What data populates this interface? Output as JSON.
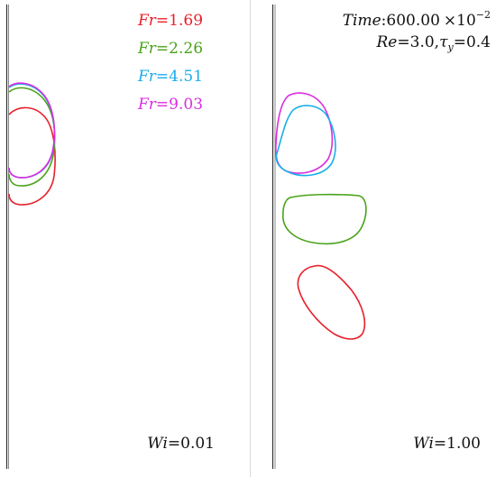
{
  "legend": {
    "items": [
      {
        "var": "Fr",
        "eq": "=",
        "value": "1.69",
        "color": "#e8202a"
      },
      {
        "var": "Fr",
        "eq": "=",
        "value": "2.26",
        "color": "#4aa31a"
      },
      {
        "var": "Fr",
        "eq": "=",
        "value": "4.51",
        "color": "#1aaee8"
      },
      {
        "var": "Fr",
        "eq": "=",
        "value": "9.03",
        "color": "#d92ee0"
      }
    ]
  },
  "time_label": {
    "var": "Time",
    "sep": ":",
    "value": "600.00",
    "times": "×10",
    "exp": "−2"
  },
  "params_label": {
    "re_var": "Re",
    "re_eq": "=",
    "re_value": "3.0",
    "comma": ",",
    "tau": "τ",
    "tau_sub": "y",
    "tau_eq": "=",
    "tau_value": "0.4"
  },
  "panels": [
    {
      "wi_var": "Wi",
      "wi_eq": "=",
      "wi_value": "0.01"
    },
    {
      "wi_var": "Wi",
      "wi_eq": "=",
      "wi_value": "1.00"
    }
  ],
  "colors": {
    "red": "#e8202a",
    "green": "#4aa31a",
    "cyan": "#1aaee8",
    "magenta": "#d92ee0",
    "wall": "#555555",
    "divider": "#d0d0d0"
  }
}
